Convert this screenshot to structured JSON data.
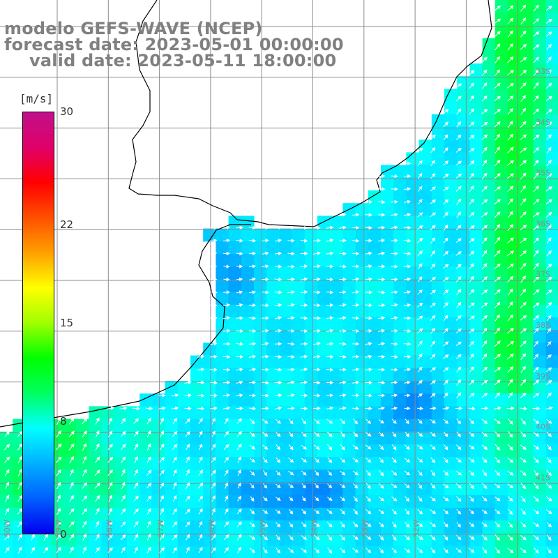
{
  "title": {
    "line1": "modelo GEFS-WAVE (NCEP)",
    "line2": "forecast date: 2023-05-01 00:00:00",
    "line3": "valid date: 2023-05-11 18:00:00"
  },
  "colorbar": {
    "unit": "[m/s]",
    "min": 0,
    "max": 30,
    "ticks": [
      {
        "label": "30",
        "value": 30
      },
      {
        "label": "22",
        "value": 22
      },
      {
        "label": "15",
        "value": 15
      },
      {
        "label": "8",
        "value": 8
      },
      {
        "label": "0",
        "value": 0
      }
    ],
    "colors": [
      "#0000ee",
      "#0060ff",
      "#00b0ff",
      "#00ffff",
      "#00ff60",
      "#00ff00",
      "#a0ff00",
      "#ffff00",
      "#ffa000",
      "#ff5000",
      "#ff0000",
      "#e0006a",
      "#c0108a"
    ]
  },
  "map": {
    "variable": "wind speed",
    "colors": {
      "land": "#ffffff",
      "coast": "#000000",
      "grid": "#8c8c8c",
      "arrow": "#ffffff"
    },
    "lat_labels": [
      "33S",
      "34S",
      "35S",
      "36S",
      "37S",
      "38S",
      "39S",
      "40S",
      "41S"
    ],
    "lon_labels": [
      "60W",
      "59W",
      "58W",
      "57W",
      "56W",
      "55W",
      "54W",
      "53W",
      "52W"
    ]
  }
}
